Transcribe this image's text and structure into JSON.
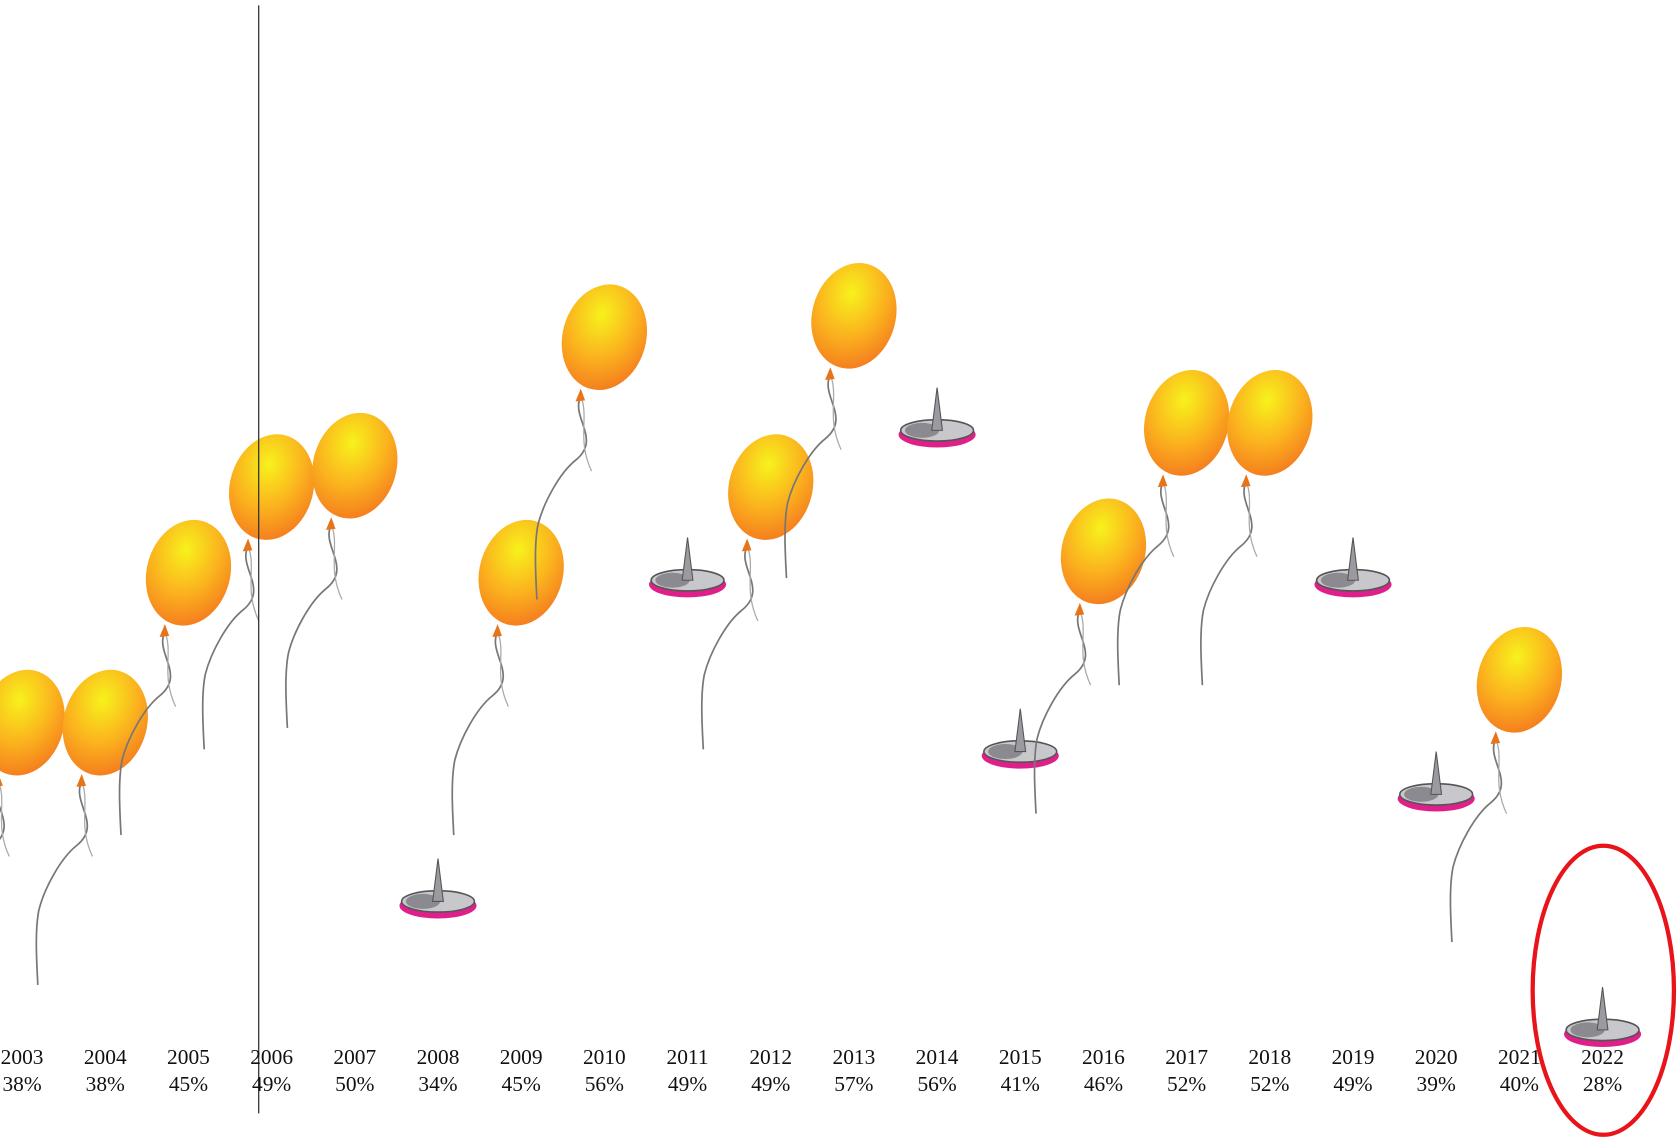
{
  "chart_data": {
    "type": "balloon",
    "categories": [
      "2003",
      "2004",
      "2005",
      "2006",
      "2007",
      "2008",
      "2009",
      "2010",
      "2011",
      "2012",
      "2013",
      "2014",
      "2015",
      "2016",
      "2017",
      "2018",
      "2019",
      "2020",
      "2021",
      "2022"
    ],
    "values": [
      38,
      38,
      45,
      49,
      50,
      34,
      45,
      56,
      49,
      49,
      57,
      56,
      41,
      46,
      52,
      52,
      49,
      39,
      40,
      28
    ],
    "value_labels": [
      "38%",
      "38%",
      "45%",
      "49%",
      "50%",
      "34%",
      "45%",
      "56%",
      "49%",
      "49%",
      "57%",
      "56%",
      "41%",
      "46%",
      "52%",
      "52%",
      "49%",
      "39%",
      "40%",
      "28%"
    ]
  }
}
